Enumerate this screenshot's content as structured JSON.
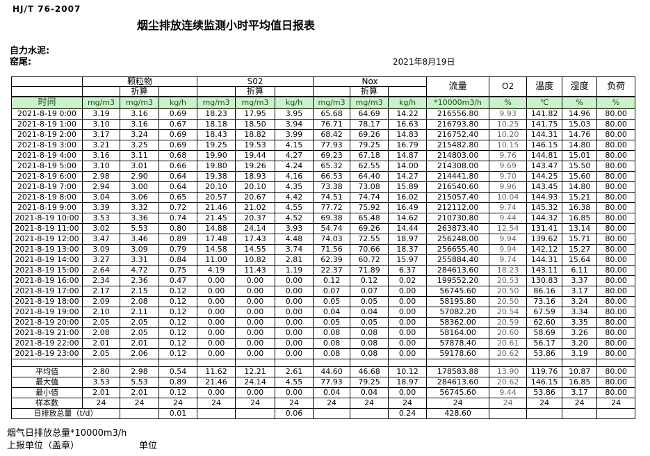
{
  "doc": {
    "standard": "HJ/T  76-2007",
    "title": "烟尘排放连续监测小时平均值日报表",
    "company": "自力水泥:",
    "station": "窑尾:",
    "date": "2021年8月19日"
  },
  "colors": {
    "header_green_bg": "#ccf2cc",
    "border": "#000000"
  },
  "table": {
    "time_header": "时间",
    "groups": [
      "颗粒物",
      "S02",
      "Nox"
    ],
    "subheader_label": "折算",
    "right_headers": [
      "流量",
      "O2",
      "温度",
      "湿度",
      "负荷"
    ],
    "units": [
      "mg/m3",
      "mg/m3",
      "kg/h",
      "mg/m3",
      "mg/m3",
      "kg/h",
      "mg/m3",
      "mg/m3",
      "kg/h",
      "*10000m3/h",
      "%",
      "℃",
      "%",
      "%"
    ],
    "rows": [
      {
        "time": "2021-8-19 0:00",
        "values": [
          "3.19",
          "3.16",
          "0.69",
          "18.23",
          "17.95",
          "3.95",
          "65.68",
          "64.69",
          "14.22",
          "216556.80",
          "9.93",
          "141.82",
          "14.96",
          "80.00"
        ]
      },
      {
        "time": "2021-8-19 1:00",
        "values": [
          "3.10",
          "3.16",
          "0.67",
          "18.18",
          "18.50",
          "3.94",
          "76.71",
          "78.17",
          "16.63",
          "216793.80",
          "10.25",
          "141.75",
          "15.03",
          "80.00"
        ]
      },
      {
        "time": "2021-8-19 2:00",
        "values": [
          "3.17",
          "3.24",
          "0.69",
          "18.43",
          "18.82",
          "3.99",
          "68.42",
          "69.26",
          "14.83",
          "216752.40",
          "10.20",
          "144.31",
          "14.76",
          "80.00"
        ]
      },
      {
        "time": "2021-8-19 3:00",
        "values": [
          "3.21",
          "3.25",
          "0.69",
          "19.25",
          "19.53",
          "4.15",
          "77.93",
          "79.25",
          "16.79",
          "215482.80",
          "10.15",
          "146.15",
          "14.80",
          "80.00"
        ]
      },
      {
        "time": "2021-8-19 4:00",
        "values": [
          "3.16",
          "3.11",
          "0.68",
          "19.90",
          "19.44",
          "4.27",
          "69.23",
          "67.18",
          "14.87",
          "214803.00",
          "9.76",
          "144.81",
          "15.01",
          "80.00"
        ]
      },
      {
        "time": "2021-8-19 5:00",
        "values": [
          "3.10",
          "3.01",
          "0.66",
          "19.80",
          "19.26",
          "4.24",
          "65.32",
          "62.55",
          "14.00",
          "214308.00",
          "9.69",
          "143.47",
          "15.50",
          "80.00"
        ]
      },
      {
        "time": "2021-8-19 6:00",
        "values": [
          "2.98",
          "2.90",
          "0.64",
          "19.38",
          "18.93",
          "4.16",
          "66.53",
          "64.40",
          "14.27",
          "214441.80",
          "9.70",
          "144.25",
          "15.60",
          "80.00"
        ]
      },
      {
        "time": "2021-8-19 7:00",
        "values": [
          "2.94",
          "3.00",
          "0.64",
          "20.10",
          "20.10",
          "4.35",
          "73.38",
          "73.08",
          "15.89",
          "216540.60",
          "9.96",
          "143.45",
          "14.80",
          "80.00"
        ]
      },
      {
        "time": "2021-8-19 8:00",
        "values": [
          "3.04",
          "3.06",
          "0.65",
          "20.57",
          "20.67",
          "4.42",
          "74.51",
          "74.74",
          "16.02",
          "215057.40",
          "10.04",
          "144.93",
          "15.21",
          "80.00"
        ]
      },
      {
        "time": "2021-8-19 9:00",
        "values": [
          "3.39",
          "3.32",
          "0.72",
          "21.46",
          "21.02",
          "4.55",
          "77.72",
          "75.92",
          "16.49",
          "212112.00",
          "9.74",
          "145.32",
          "16.38",
          "80.00"
        ]
      },
      {
        "time": "2021-8-19 10:00",
        "values": [
          "3.53",
          "3.36",
          "0.74",
          "21.45",
          "20.37",
          "4.52",
          "69.38",
          "65.48",
          "14.62",
          "210730.80",
          "9.44",
          "144.32",
          "16.85",
          "80.00"
        ]
      },
      {
        "time": "2021-8-19 11:00",
        "values": [
          "3.02",
          "5.53",
          "0.80",
          "14.88",
          "24.14",
          "3.93",
          "54.74",
          "69.26",
          "14.44",
          "263873.40",
          "12.54",
          "131.41",
          "13.14",
          "80.00"
        ]
      },
      {
        "time": "2021-8-19 12:00",
        "values": [
          "3.47",
          "3.46",
          "0.89",
          "17.48",
          "17.43",
          "4.48",
          "74.03",
          "72.55",
          "18.97",
          "256248.00",
          "9.94",
          "139.62",
          "15.71",
          "80.00"
        ]
      },
      {
        "time": "2021-8-19 13:00",
        "values": [
          "3.09",
          "3.09",
          "0.79",
          "14.58",
          "14.55",
          "3.74",
          "71.56",
          "70.66",
          "18.37",
          "256655.40",
          "9.94",
          "142.12",
          "15.27",
          "80.00"
        ]
      },
      {
        "time": "2021-8-19 14:00",
        "values": [
          "3.27",
          "3.31",
          "0.84",
          "11.00",
          "10.82",
          "2.81",
          "62.39",
          "60.72",
          "15.97",
          "255884.40",
          "9.74",
          "144.31",
          "15.64",
          "80.00"
        ]
      },
      {
        "time": "2021-8-19 15:00",
        "values": [
          "2.64",
          "4.72",
          "0.75",
          "4.19",
          "11.43",
          "1.19",
          "22.37",
          "71.89",
          "6.37",
          "284613.60",
          "18.23",
          "143.11",
          "6.11",
          "80.00"
        ]
      },
      {
        "time": "2021-8-19 16:00",
        "values": [
          "2.34",
          "2.36",
          "0.47",
          "0.00",
          "0.00",
          "0.00",
          "0.12",
          "0.12",
          "0.02",
          "199552.20",
          "20.53",
          "130.83",
          "3.37",
          "80.00"
        ]
      },
      {
        "time": "2021-8-19 17:00",
        "values": [
          "2.17",
          "2.15",
          "0.12",
          "0.00",
          "0.00",
          "0.00",
          "0.07",
          "0.07",
          "0.00",
          "56745.60",
          "20.50",
          "86.16",
          "3.17",
          "80.00"
        ]
      },
      {
        "time": "2021-8-19 18:00",
        "values": [
          "2.09",
          "2.08",
          "0.12",
          "0.00",
          "0.00",
          "0.00",
          "0.05",
          "0.05",
          "0.00",
          "58195.80",
          "20.50",
          "73.16",
          "3.24",
          "80.00"
        ]
      },
      {
        "time": "2021-8-19 19:00",
        "values": [
          "2.10",
          "2.11",
          "0.12",
          "0.00",
          "0.00",
          "0.00",
          "0.04",
          "0.04",
          "0.00",
          "57082.20",
          "20.54",
          "67.59",
          "3.34",
          "80.00"
        ]
      },
      {
        "time": "2021-8-19 20:00",
        "values": [
          "2.05",
          "2.05",
          "0.12",
          "0.00",
          "0.00",
          "0.00",
          "0.05",
          "0.05",
          "0.00",
          "58362.00",
          "20.59",
          "62.60",
          "3.35",
          "80.00"
        ]
      },
      {
        "time": "2021-8-19 21:00",
        "values": [
          "2.08",
          "2.05",
          "0.12",
          "0.00",
          "0.00",
          "0.00",
          "0.08",
          "0.08",
          "0.00",
          "58164.00",
          "20.60",
          "58.69",
          "3.26",
          "80.00"
        ]
      },
      {
        "time": "2021-8-19 22:00",
        "values": [
          "2.01",
          "2.01",
          "0.12",
          "0.00",
          "0.00",
          "0.00",
          "0.08",
          "0.08",
          "0.00",
          "57878.40",
          "20.61",
          "56.17",
          "3.20",
          "80.00"
        ]
      },
      {
        "time": "2021-8-19 23:00",
        "values": [
          "2.05",
          "2.06",
          "0.12",
          "0.00",
          "0.00",
          "0.00",
          "0.08",
          "0.08",
          "0.00",
          "59178.60",
          "20.62",
          "53.86",
          "3.19",
          "80.00"
        ]
      }
    ],
    "summary": [
      {
        "label": "平均值",
        "values": [
          "2.80",
          "2.98",
          "0.54",
          "11.62",
          "12.21",
          "2.61",
          "44.60",
          "46.68",
          "10.12",
          "178583.88",
          "13.90",
          "119.76",
          "10.87",
          "80.00"
        ]
      },
      {
        "label": "最大值",
        "values": [
          "3.53",
          "5.53",
          "0.89",
          "21.46",
          "24.14",
          "4.55",
          "77.93",
          "79.25",
          "18.97",
          "284613.60",
          "20.62",
          "146.15",
          "16.85",
          "80.00"
        ]
      },
      {
        "label": "最小值",
        "values": [
          "2.01",
          "2.01",
          "0.12",
          "0.00",
          "0.00",
          "0.00",
          "0.04",
          "0.04",
          "0.00",
          "56745.60",
          "9.44",
          "53.86",
          "3.17",
          "80.00"
        ]
      },
      {
        "label": "样本数",
        "values": [
          "24",
          "24",
          "24",
          "24",
          "24",
          "24",
          "24",
          "24",
          "24",
          "24",
          "24",
          "24",
          "24",
          "24"
        ]
      }
    ],
    "total_row": {
      "label": "日排放总量（t/d）",
      "values": [
        "",
        "0.01",
        "",
        "",
        "0.06",
        "",
        "",
        "0.24",
        "428.60",
        "",
        "",
        "",
        ""
      ]
    }
  },
  "footer": {
    "flue_gas_total": "烟气日排放总量*10000m3/h",
    "reporting_unit": "上报单位（盖章）",
    "unit": "单位"
  }
}
